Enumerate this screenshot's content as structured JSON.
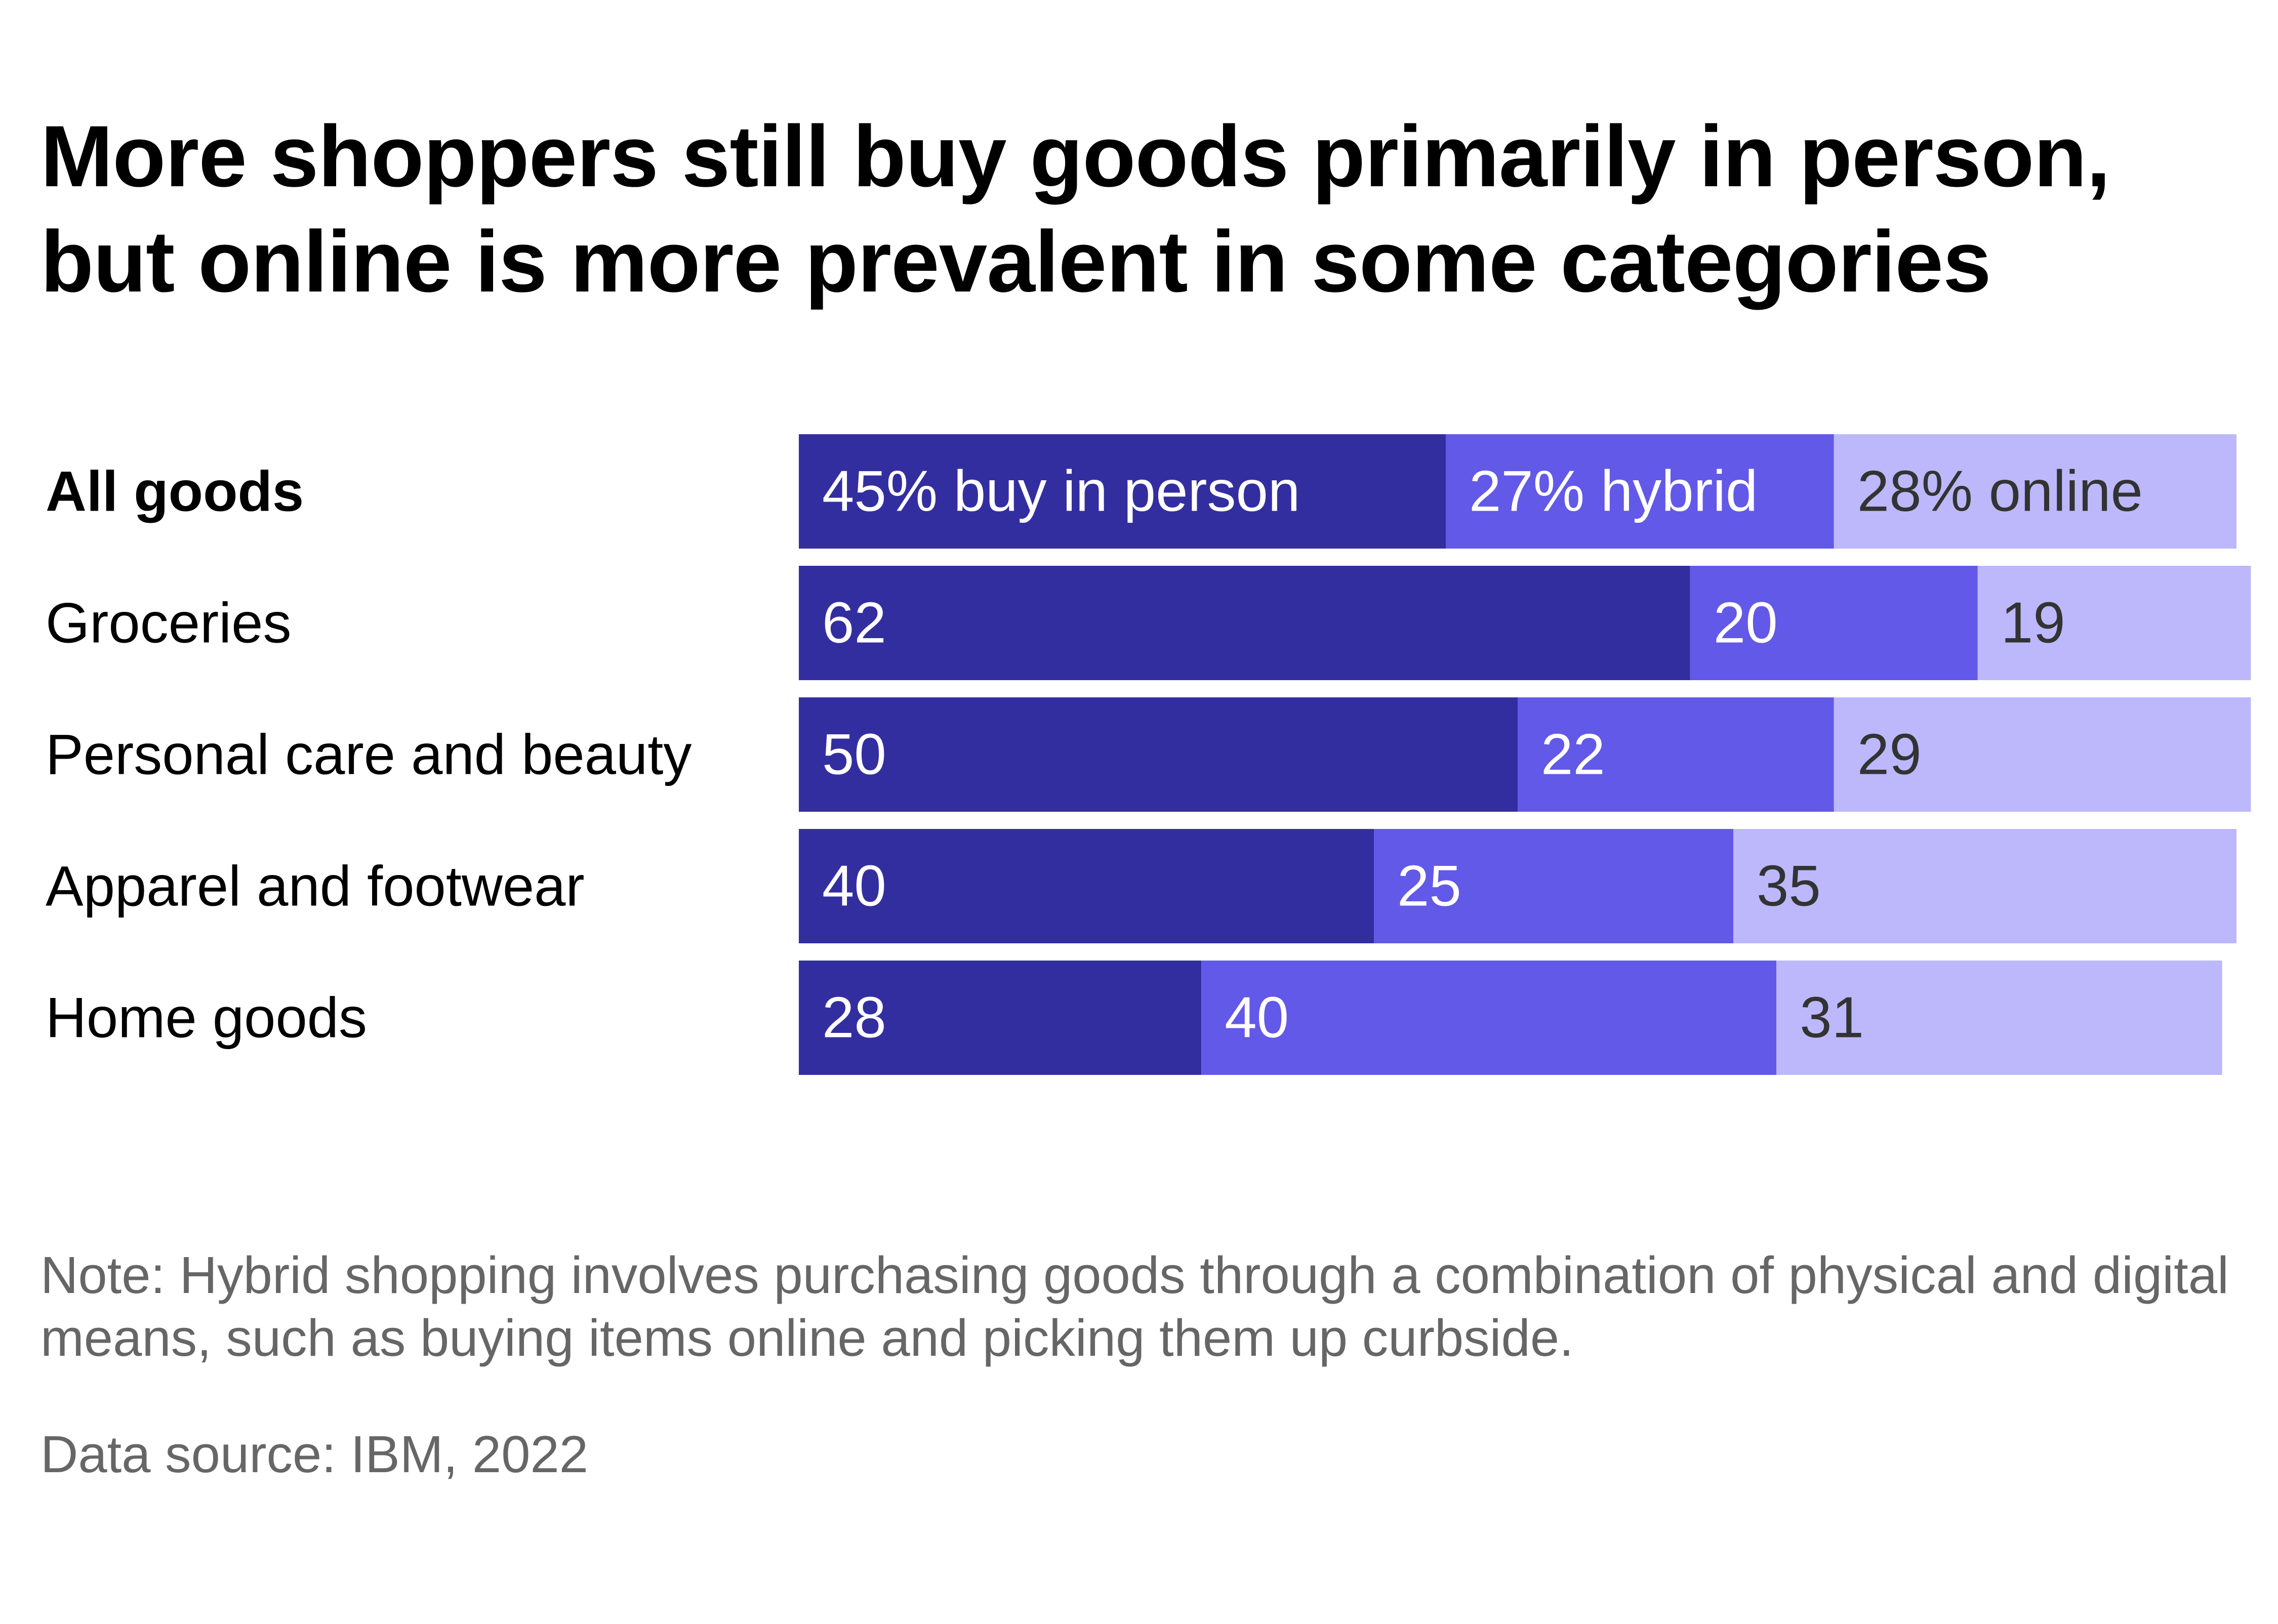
{
  "chart_data": {
    "type": "bar",
    "orientation": "horizontal",
    "stacked": true,
    "title": "More shoppers still buy goods primarily in person, but online is more prevalent in some categories",
    "categories": [
      "All goods",
      "Groceries",
      "Personal care and beauty",
      "Apparel and footwear",
      "Home goods"
    ],
    "highlight_category": "All goods",
    "series": [
      {
        "key": "in_person",
        "values": [
          45,
          62,
          50,
          40,
          28
        ],
        "color": "#332ea0"
      },
      {
        "key": "hybrid",
        "values": [
          27,
          20,
          22,
          25,
          40
        ],
        "color": "#6259e8"
      },
      {
        "key": "online",
        "values": [
          28,
          19,
          29,
          35,
          31
        ],
        "color": "#bcb8fb"
      }
    ],
    "data_labels": [
      [
        "45% buy in person",
        "27% hybrid",
        "28% online"
      ],
      [
        "62",
        "20",
        "19"
      ],
      [
        "50",
        "22",
        "29"
      ],
      [
        "40",
        "25",
        "35"
      ],
      [
        "28",
        "40",
        "31"
      ]
    ],
    "label_colors": [
      "#ffffff",
      "#ffffff",
      "#333333"
    ],
    "xlim": [
      0,
      100
    ],
    "grid": false,
    "legend": "none",
    "note": "Note: Hybrid shopping involves purchasing goods through a combination of physical and digital means, such as buying items online and picking them up curbside.",
    "source": "Data source: IBM, 2022"
  }
}
